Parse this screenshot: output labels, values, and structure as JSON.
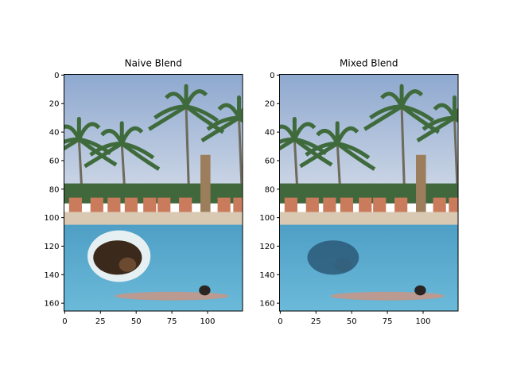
{
  "chart_data": [
    {
      "type": "image",
      "title": "Naive Blend",
      "blend": "naive",
      "xlim": [
        -0.5,
        124.5
      ],
      "ylim": [
        165.5,
        -0.5
      ],
      "xticks": [
        0,
        25,
        50,
        75,
        100
      ],
      "yticks": [
        0,
        20,
        40,
        60,
        80,
        100,
        120,
        140,
        160
      ]
    },
    {
      "type": "image",
      "title": "Mixed Blend",
      "blend": "mixed",
      "xlim": [
        -0.5,
        124.5
      ],
      "ylim": [
        165.5,
        -0.5
      ],
      "xticks": [
        0,
        25,
        50,
        75,
        100
      ],
      "yticks": [
        0,
        20,
        40,
        60,
        80,
        100,
        120,
        140,
        160
      ]
    }
  ]
}
